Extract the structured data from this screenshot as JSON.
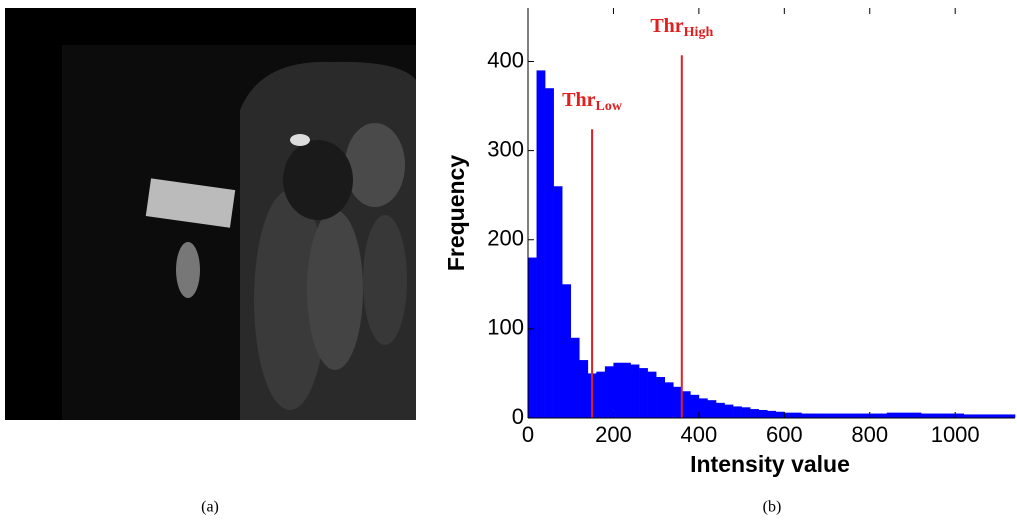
{
  "captions": [
    "(a)",
    "(b)"
  ],
  "chart_data": {
    "type": "histogram",
    "xlabel": "Intensity value",
    "ylabel": "Frequency",
    "color": "#0000ff",
    "bins": [
      0,
      20,
      40,
      60,
      80,
      100,
      120,
      140,
      160,
      180,
      200,
      220,
      240,
      260,
      280,
      300,
      320,
      340,
      360,
      380,
      400,
      420,
      440,
      460,
      480,
      500,
      520,
      540,
      560,
      580,
      600,
      620,
      640,
      660,
      680,
      700,
      720,
      740,
      760,
      780,
      800,
      820,
      840,
      860,
      880,
      900,
      920,
      940,
      960,
      980,
      1000,
      1020,
      1040,
      1060,
      1080,
      1100,
      1120,
      1140
    ],
    "values": [
      180,
      390,
      370,
      260,
      150,
      90,
      65,
      50,
      52,
      58,
      62,
      62,
      60,
      56,
      52,
      46,
      40,
      35,
      30,
      26,
      22,
      20,
      17,
      15,
      13,
      12,
      10,
      9,
      8,
      7,
      6,
      6,
      5,
      5,
      5,
      5,
      5,
      5,
      5,
      5,
      5,
      5,
      6,
      6,
      6,
      6,
      5,
      5,
      5,
      5,
      5,
      4,
      4,
      4,
      4,
      4,
      4
    ],
    "xlim": [
      0,
      1140
    ],
    "ylim": [
      0,
      460
    ],
    "xticks": [
      0,
      200,
      400,
      600,
      800,
      1000
    ],
    "yticks": [
      0,
      100,
      200,
      300,
      400
    ],
    "annotations": [
      {
        "label": "Thr",
        "subscript": "Low",
        "x": 150,
        "y": 324,
        "color": "#e02020"
      },
      {
        "label": "Thr",
        "subscript": "High",
        "x": 360,
        "y": 407,
        "color": "#e02020"
      }
    ]
  }
}
